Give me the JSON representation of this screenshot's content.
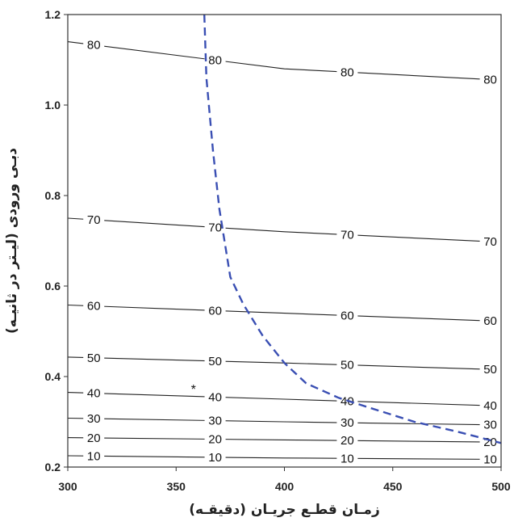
{
  "chart_data": {
    "type": "line",
    "xlabel": "زمـان قطـع جریـان (دقیقـه)",
    "ylabel": "دبـی ورودی (لیـتر در ثانیـه)",
    "xlim": [
      300,
      500
    ],
    "ylim": [
      0.2,
      1.2
    ],
    "x_ticks": [
      "300",
      "350",
      "400",
      "450",
      "500"
    ],
    "y_ticks": [
      "0.2",
      "0.4",
      "0.6",
      "0.8",
      "1.0",
      "1.2"
    ],
    "grid": false,
    "legend": "none",
    "contours": [
      {
        "level": "10",
        "points": [
          [
            300,
            0.225
          ],
          [
            400,
            0.22
          ],
          [
            500,
            0.217
          ]
        ],
        "label_x": [
          312,
          368,
          429,
          495
        ]
      },
      {
        "level": "20",
        "points": [
          [
            300,
            0.265
          ],
          [
            400,
            0.26
          ],
          [
            500,
            0.255
          ]
        ],
        "label_x": [
          312,
          368,
          429,
          495
        ]
      },
      {
        "level": "30",
        "points": [
          [
            300,
            0.308
          ],
          [
            400,
            0.3
          ],
          [
            500,
            0.293
          ]
        ],
        "label_x": [
          312,
          368,
          429,
          495
        ]
      },
      {
        "level": "40",
        "points": [
          [
            300,
            0.365
          ],
          [
            400,
            0.35
          ],
          [
            500,
            0.335
          ]
        ],
        "label_x": [
          312,
          368,
          429,
          495
        ]
      },
      {
        "level": "50",
        "points": [
          [
            300,
            0.443
          ],
          [
            400,
            0.43
          ],
          [
            500,
            0.415
          ]
        ],
        "label_x": [
          312,
          368,
          429,
          495
        ]
      },
      {
        "level": "60",
        "points": [
          [
            300,
            0.558
          ],
          [
            400,
            0.54
          ],
          [
            500,
            0.522
          ]
        ],
        "label_x": [
          312,
          368,
          429,
          495
        ]
      },
      {
        "level": "70",
        "points": [
          [
            300,
            0.75
          ],
          [
            400,
            0.72
          ],
          [
            500,
            0.697
          ]
        ],
        "label_x": [
          312,
          368,
          429,
          495
        ]
      },
      {
        "level": "80",
        "points": [
          [
            300,
            1.14
          ],
          [
            400,
            1.08
          ],
          [
            500,
            1.055
          ]
        ],
        "label_x": [
          312,
          368,
          429,
          495
        ]
      }
    ],
    "dashed_curve": {
      "color": "#3a4fb3",
      "points": [
        [
          363,
          1.2
        ],
        [
          364,
          1.06
        ],
        [
          367,
          0.9
        ],
        [
          370,
          0.77
        ],
        [
          375,
          0.62
        ],
        [
          381,
          0.56
        ],
        [
          390,
          0.49
        ],
        [
          400,
          0.43
        ],
        [
          410,
          0.385
        ],
        [
          425,
          0.353
        ],
        [
          440,
          0.33
        ],
        [
          460,
          0.3
        ],
        [
          480,
          0.278
        ],
        [
          500,
          0.253
        ]
      ]
    },
    "marker": {
      "symbol": "*",
      "x": 358,
      "y": 0.38
    },
    "colors": {
      "contour": "#222222",
      "axis": "#333333"
    }
  }
}
